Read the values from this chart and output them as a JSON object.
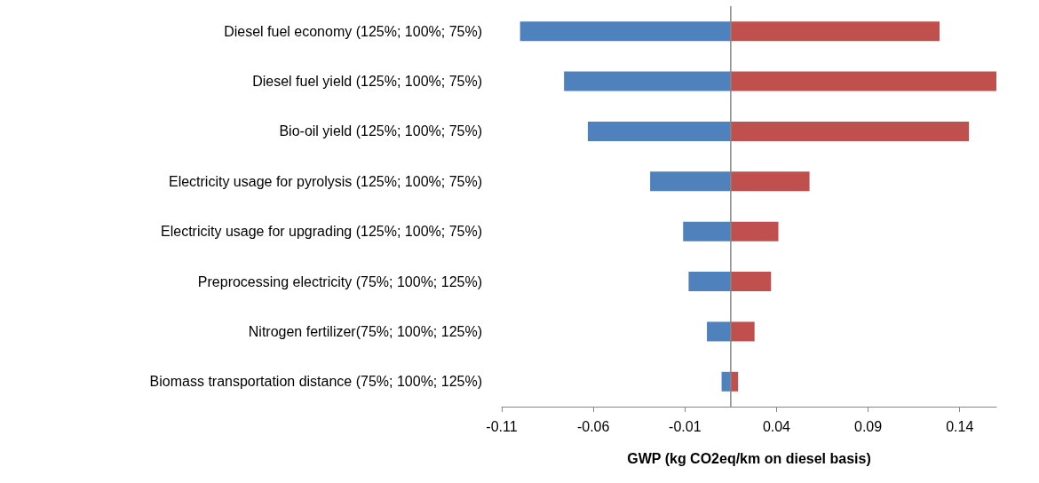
{
  "chart_data": {
    "type": "bar",
    "orientation": "horizontal",
    "xlabel": "GWP (kg CO2eq/km on diesel basis)",
    "categories": [
      "Diesel fuel economy (125%; 100%; 75%)",
      "Diesel fuel yield (125%; 100%; 75%)",
      "Bio-oil yield (125%; 100%; 75%)",
      "Electricity usage for pyrolysis (125%; 100%; 75%)",
      "Electricity usage for upgrading (125%; 100%; 75%)",
      "Preprocessing electricity (75%; 100%; 125%)",
      "Nitrogen fertilizer(75%; 100%; 125%)",
      "Biomass transportation distance (75%; 100%; 125%)"
    ],
    "series": [
      {
        "color": "#4f81bd",
        "base": [
          0.015,
          0.015,
          0.015,
          0.015,
          0.015,
          0.015,
          0.015,
          0.015
        ],
        "values": [
          -0.115,
          -0.091,
          -0.078,
          -0.044,
          -0.026,
          -0.023,
          -0.013,
          -0.005
        ]
      },
      {
        "color": "#c0504d",
        "base": [
          0.015,
          0.015,
          0.015,
          0.015,
          0.015,
          0.015,
          0.015,
          0.015
        ],
        "values": [
          0.114,
          0.145,
          0.13,
          0.043,
          0.026,
          0.022,
          0.013,
          0.004
        ]
      }
    ],
    "xlim": [
      -0.11,
      0.16
    ],
    "xticks": [
      -0.11,
      -0.06,
      -0.01,
      0.04,
      0.09,
      0.14
    ],
    "ref_lines": [
      {
        "axis": "x",
        "value": 0.015,
        "color": "#868686"
      }
    ],
    "grid": false
  }
}
